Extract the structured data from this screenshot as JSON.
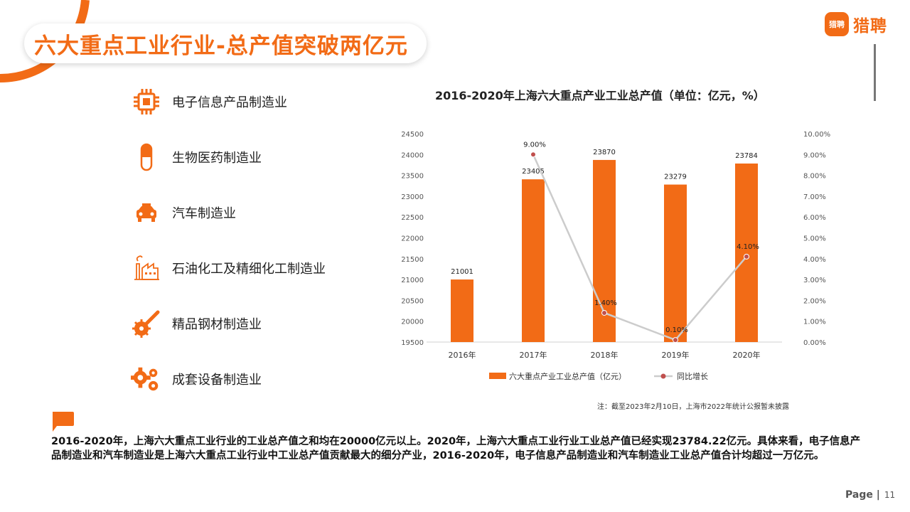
{
  "header": {
    "title": "六大重点工业行业-总产值突破两亿元",
    "logo_badge": "猎聘",
    "logo_text": "猎聘",
    "accent_color": "#f26b16"
  },
  "industries": [
    {
      "label": "电子信息产品制造业",
      "icon": "chip-icon"
    },
    {
      "label": "生物医药制造业",
      "icon": "capsule-icon"
    },
    {
      "label": "汽车制造业",
      "icon": "car-icon"
    },
    {
      "label": "石油化工及精细化工制造业",
      "icon": "factory-icon"
    },
    {
      "label": "精品钢材制造业",
      "icon": "saw-blade-icon"
    },
    {
      "label": "成套设备制造业",
      "icon": "gears-icon"
    }
  ],
  "chart_data": {
    "type": "bar",
    "title": "2016-2020年上海六大重点产业工业总产值（单位：亿元，%）",
    "categories": [
      "2016年",
      "2017年",
      "2018年",
      "2019年",
      "2020年"
    ],
    "series": [
      {
        "name": "六大重点产业工业总产值（亿元）",
        "type": "bar",
        "axis": "left",
        "color": "#f26b16",
        "values": [
          21001,
          23405,
          23870,
          23279,
          23784
        ],
        "labels": [
          "21001",
          "23405",
          "23870",
          "23279",
          "23784"
        ]
      },
      {
        "name": "同比增长",
        "type": "line",
        "axis": "right",
        "color": "#cccccc",
        "marker_color": "#c0504d",
        "values": [
          9.0,
          1.4,
          0.1,
          4.1
        ],
        "x": [
          "2017年",
          "2018年",
          "2019年",
          "2020年"
        ],
        "labels": [
          "9.00%",
          "1.40%",
          "0.10%",
          "4.10%"
        ]
      }
    ],
    "ylim": [
      19500,
      24500
    ],
    "yticks": [
      "19500",
      "20000",
      "20500",
      "21000",
      "21500",
      "22000",
      "22500",
      "23000",
      "23500",
      "24000",
      "24500"
    ],
    "y2lim": [
      0,
      10
    ],
    "y2ticks": [
      "0.00%",
      "1.00%",
      "2.00%",
      "3.00%",
      "4.00%",
      "5.00%",
      "6.00%",
      "7.00%",
      "8.00%",
      "9.00%",
      "10.00%"
    ],
    "grid": false,
    "legend": "bottom"
  },
  "chart_note": "注：截至2023年2月10日，上海市2022年统计公报暂未披露",
  "summary": "2016-2020年，上海六大重点工业行业的工业总产值之和均在20000亿元以上。2020年，上海六大重点工业行业工业总产值已经实现23784.22亿元。具体来看，电子信息产品制造业和汽车制造业是上海六大重点工业行业中工业总产值贡献最大的细分产业，2016-2020年，电子信息产品制造业和汽车制造业工业总产值合计均超过一万亿元。",
  "footer": {
    "page_label": "Page |",
    "page_number": "11"
  }
}
